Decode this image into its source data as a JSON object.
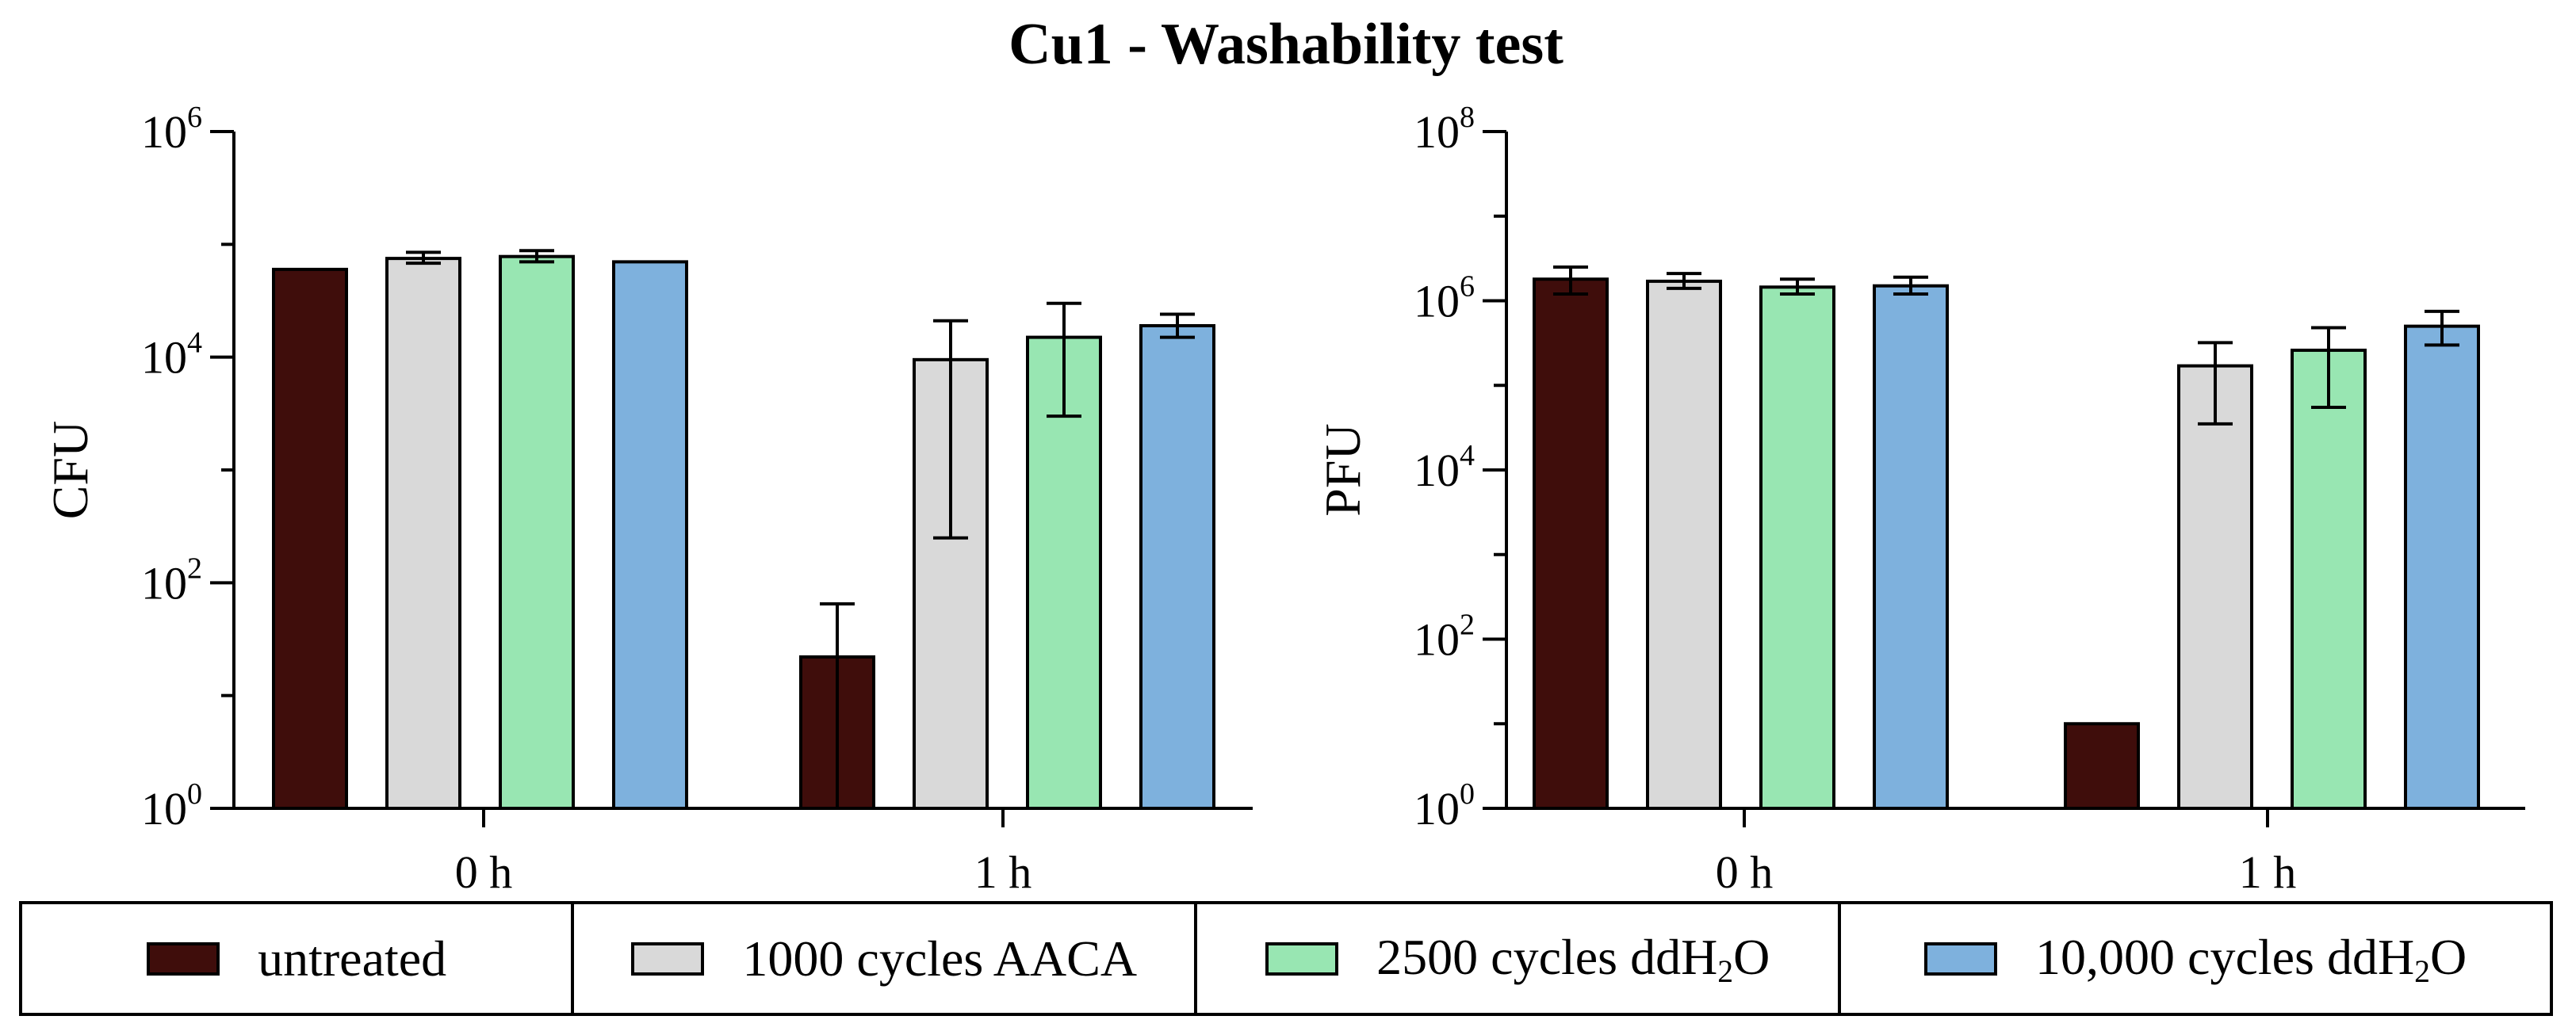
{
  "title": "Cu1 - Washability test",
  "colors": {
    "untreated": "#3f0d0b",
    "aaca": "#d9d9d9",
    "water2500": "#98e6b2",
    "water10000": "#7eb1dd"
  },
  "legend": [
    {
      "key": "untreated",
      "label": "untreated",
      "sub": "",
      "suffix": ""
    },
    {
      "key": "aaca",
      "label": "1000 cycles AACA",
      "sub": "",
      "suffix": ""
    },
    {
      "key": "water2500",
      "label": "2500 cycles ddH",
      "sub": "2",
      "suffix": "O"
    },
    {
      "key": "water10000",
      "label": "10,000 cycles ddH",
      "sub": "2",
      "suffix": "O"
    }
  ],
  "chart_data": [
    {
      "type": "bar",
      "scale": "log10",
      "ylabel": "CFU",
      "ylim": [
        1,
        1000000
      ],
      "yticks": [
        {
          "base": "10",
          "exp": "0"
        },
        {
          "base": "10",
          "exp": "2"
        },
        {
          "base": "10",
          "exp": "4"
        },
        {
          "base": "10",
          "exp": "6"
        }
      ],
      "categories": [
        "0 h",
        "1 h"
      ],
      "series": [
        {
          "name": "untreated",
          "key": "untreated",
          "values": [
            60000,
            22
          ],
          "err_low": [
            null,
            1
          ],
          "err_high": [
            null,
            65
          ]
        },
        {
          "name": "1000 cycles AACA",
          "key": "aaca",
          "values": [
            75000,
            9500
          ],
          "err_low": [
            68000,
            250
          ],
          "err_high": [
            85000,
            21000
          ]
        },
        {
          "name": "2500 cycles ddH2O",
          "key": "water2500",
          "values": [
            78000,
            15000
          ],
          "err_low": [
            70000,
            3000
          ],
          "err_high": [
            88000,
            30000
          ]
        },
        {
          "name": "10,000 cycles ddH2O",
          "key": "water10000",
          "values": [
            70000,
            19000
          ],
          "err_low": [
            null,
            15000
          ],
          "err_high": [
            null,
            24000
          ]
        }
      ]
    },
    {
      "type": "bar",
      "scale": "log10",
      "ylabel": "PFU",
      "ylim": [
        1,
        100000000
      ],
      "yticks": [
        {
          "base": "10",
          "exp": "0"
        },
        {
          "base": "10",
          "exp": "2"
        },
        {
          "base": "10",
          "exp": "4"
        },
        {
          "base": "10",
          "exp": "6"
        },
        {
          "base": "10",
          "exp": "8"
        }
      ],
      "categories": [
        "0 h",
        "1 h"
      ],
      "series": [
        {
          "name": "untreated",
          "key": "untreated",
          "values": [
            1800000,
            10
          ],
          "err_low": [
            1200000,
            null
          ],
          "err_high": [
            2500000,
            null
          ]
        },
        {
          "name": "1000 cycles AACA",
          "key": "aaca",
          "values": [
            1700000,
            170000
          ],
          "err_low": [
            1400000,
            35000
          ],
          "err_high": [
            2100000,
            320000
          ]
        },
        {
          "name": "2500 cycles ddH2O",
          "key": "water2500",
          "values": [
            1450000,
            260000
          ],
          "err_low": [
            1200000,
            55000
          ],
          "err_high": [
            1800000,
            480000
          ]
        },
        {
          "name": "10,000 cycles ddH2O",
          "key": "water10000",
          "values": [
            1500000,
            500000
          ],
          "err_low": [
            1200000,
            300000
          ],
          "err_high": [
            1900000,
            750000
          ]
        }
      ]
    }
  ]
}
